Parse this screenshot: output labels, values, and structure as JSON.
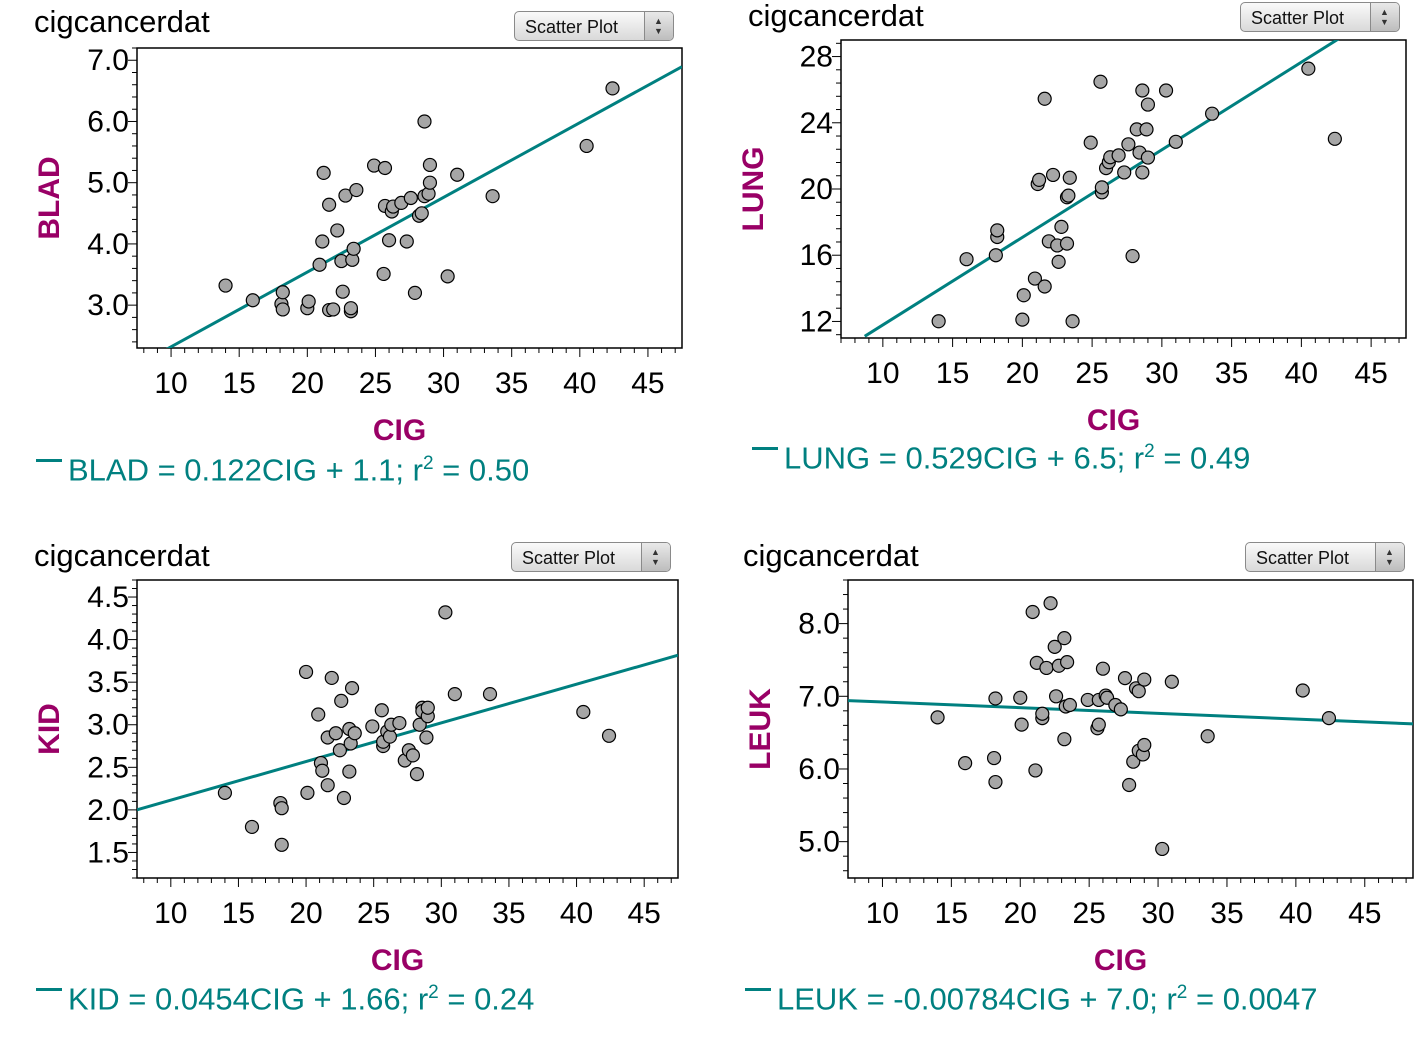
{
  "colors": {
    "regression": "#008080",
    "axis_title": "#990066",
    "point_fill": "#a6a6a6",
    "point_stroke": "#000000"
  },
  "panels": [
    {
      "title": "cigcancerdat",
      "plot_type": "Scatter Plot",
      "equation": "BLAD = 0.122CIG + 1.1; r",
      "r2_exp": "2",
      "r2_value": " = 0.50"
    },
    {
      "title": "cigcancerdat",
      "plot_type": "Scatter Plot",
      "equation": "LUNG = 0.529CIG + 6.5; r",
      "r2_exp": "2",
      "r2_value": " = 0.49"
    },
    {
      "title": "cigcancerdat",
      "plot_type": "Scatter Plot",
      "equation": "KID = 0.0454CIG + 1.66; r",
      "r2_exp": "2",
      "r2_value": " = 0.24"
    },
    {
      "title": "cigcancerdat",
      "plot_type": "Scatter Plot",
      "equation": "LEUK = -0.00784CIG + 7.0; r",
      "r2_exp": "2",
      "r2_value": " = 0.0047"
    }
  ],
  "chart_data": [
    {
      "type": "scatter",
      "title": "cigcancerdat",
      "xlabel": "CIG",
      "ylabel": "BLAD",
      "xlim": [
        7.5,
        47.5
      ],
      "ylim": [
        2.3,
        7.2
      ],
      "xticks": [
        "10",
        "15",
        "20",
        "25",
        "30",
        "35",
        "40",
        "45"
      ],
      "xtick_values": [
        10,
        15,
        20,
        25,
        30,
        35,
        40,
        45
      ],
      "yticks": [
        "3.0",
        "4.0",
        "5.0",
        "6.0",
        "7.0"
      ],
      "ytick_values": [
        3,
        4,
        5,
        6,
        7
      ],
      "regression": {
        "slope": 0.122,
        "intercept": 1.1,
        "r2": 0.5,
        "x_range": [
          9.7,
          47.5
        ]
      },
      "x": [
        14.0,
        16.0,
        18.1,
        18.2,
        18.2,
        20.0,
        20.1,
        20.9,
        21.1,
        21.2,
        21.6,
        21.6,
        21.9,
        22.2,
        22.5,
        22.6,
        22.8,
        23.2,
        23.2,
        23.3,
        23.4,
        23.6,
        24.9,
        25.6,
        25.7,
        25.7,
        26.0,
        26.2,
        26.3,
        26.9,
        27.3,
        27.6,
        27.9,
        28.2,
        28.4,
        28.6,
        28.6,
        28.9,
        29.0,
        29.0,
        30.3,
        31.0,
        33.6,
        40.5,
        42.4
      ],
      "y": [
        3.32,
        3.08,
        3.02,
        3.21,
        2.93,
        2.95,
        3.06,
        3.66,
        4.04,
        5.16,
        2.92,
        4.64,
        2.93,
        4.22,
        3.72,
        3.22,
        4.79,
        2.9,
        2.95,
        3.74,
        3.92,
        4.88,
        5.28,
        3.51,
        4.62,
        5.24,
        4.06,
        4.53,
        4.61,
        4.67,
        4.04,
        4.75,
        3.2,
        4.46,
        4.5,
        6.0,
        4.78,
        4.82,
        5.0,
        5.29,
        3.47,
        5.13,
        4.78,
        5.6,
        6.54
      ]
    },
    {
      "type": "scatter",
      "title": "cigcancerdat",
      "xlabel": "CIG",
      "ylabel": "LUNG",
      "xlim": [
        7.0,
        47.5
      ],
      "ylim": [
        11.0,
        29.0
      ],
      "xticks": [
        "10",
        "15",
        "20",
        "25",
        "30",
        "35",
        "40",
        "45"
      ],
      "xtick_values": [
        10,
        15,
        20,
        25,
        30,
        35,
        40,
        45
      ],
      "yticks": [
        "12",
        "16",
        "20",
        "24",
        "28"
      ],
      "ytick_values": [
        12,
        16,
        20,
        24,
        28
      ],
      "regression": {
        "slope": 0.529,
        "intercept": 6.5,
        "r2": 0.49,
        "x_range": [
          8.7,
          44.5
        ]
      },
      "x": [
        14.0,
        16.0,
        18.1,
        18.2,
        18.2,
        20.0,
        20.1,
        20.9,
        21.1,
        21.2,
        21.6,
        21.6,
        21.9,
        22.2,
        22.5,
        22.6,
        22.8,
        23.2,
        23.2,
        23.3,
        23.4,
        23.6,
        24.9,
        25.6,
        25.7,
        25.7,
        26.0,
        26.2,
        26.3,
        26.9,
        27.3,
        27.6,
        27.9,
        28.2,
        28.4,
        28.6,
        28.6,
        28.9,
        29.0,
        29.0,
        30.3,
        31.0,
        33.6,
        40.5,
        42.4
      ],
      "y": [
        12.01,
        15.76,
        16.0,
        17.1,
        17.5,
        12.11,
        13.58,
        14.59,
        20.3,
        20.55,
        14.11,
        25.45,
        16.84,
        20.85,
        16.59,
        15.6,
        17.71,
        19.5,
        16.7,
        19.6,
        20.68,
        12.01,
        22.8,
        26.48,
        19.8,
        20.1,
        21.26,
        21.62,
        21.92,
        22.03,
        21.0,
        22.7,
        15.95,
        23.6,
        22.2,
        25.95,
        21.0,
        23.6,
        25.1,
        21.9,
        25.95,
        22.85,
        24.55,
        27.27,
        23.03
      ]
    },
    {
      "type": "scatter",
      "title": "cigcancerdat",
      "xlabel": "CIG",
      "ylabel": "KID",
      "xlim": [
        7.5,
        47.5
      ],
      "ylim": [
        1.2,
        4.7
      ],
      "xticks": [
        "10",
        "15",
        "20",
        "25",
        "30",
        "35",
        "40",
        "45"
      ],
      "xtick_values": [
        10,
        15,
        20,
        25,
        30,
        35,
        40,
        45
      ],
      "yticks": [
        "1.5",
        "2.0",
        "2.5",
        "3.0",
        "3.5",
        "4.0",
        "4.5"
      ],
      "ytick_values": [
        1.5,
        2.0,
        2.5,
        3.0,
        3.5,
        4.0,
        4.5
      ],
      "regression": {
        "slope": 0.0454,
        "intercept": 1.66,
        "r2": 0.24,
        "x_range": [
          7.5,
          47.5
        ]
      },
      "x": [
        14.0,
        16.0,
        18.1,
        18.2,
        18.2,
        20.0,
        20.1,
        20.9,
        21.1,
        21.2,
        21.6,
        21.6,
        21.9,
        22.2,
        22.5,
        22.6,
        22.8,
        23.2,
        23.2,
        23.3,
        23.4,
        23.6,
        24.9,
        25.6,
        25.7,
        25.7,
        26.0,
        26.2,
        26.3,
        26.9,
        27.3,
        27.6,
        27.9,
        28.2,
        28.4,
        28.6,
        28.6,
        28.9,
        29.0,
        29.0,
        30.3,
        31.0,
        33.6,
        40.5,
        42.4
      ],
      "y": [
        2.2,
        1.8,
        2.08,
        2.02,
        1.59,
        3.62,
        2.2,
        3.12,
        2.55,
        2.46,
        2.29,
        2.85,
        3.55,
        2.9,
        2.7,
        3.28,
        2.14,
        2.45,
        2.95,
        2.78,
        3.43,
        2.9,
        2.98,
        3.17,
        2.75,
        2.8,
        2.92,
        2.86,
        3.0,
        3.02,
        2.58,
        2.7,
        2.64,
        2.42,
        3.0,
        3.2,
        3.16,
        2.85,
        3.1,
        3.2,
        4.32,
        3.36,
        3.36,
        3.15,
        2.87
      ]
    },
    {
      "type": "scatter",
      "title": "cigcancerdat",
      "xlabel": "CIG",
      "ylabel": "LEUK",
      "xlim": [
        7.5,
        48.5
      ],
      "ylim": [
        4.5,
        8.6
      ],
      "xticks": [
        "10",
        "15",
        "20",
        "25",
        "30",
        "35",
        "40",
        "45"
      ],
      "xtick_values": [
        10,
        15,
        20,
        25,
        30,
        35,
        40,
        45
      ],
      "yticks": [
        "5.0",
        "6.0",
        "7.0",
        "8.0"
      ],
      "ytick_values": [
        5,
        6,
        7,
        8
      ],
      "regression": {
        "slope": -0.00784,
        "intercept": 7.0,
        "r2": 0.0047,
        "x_range": [
          7.5,
          48.5
        ]
      },
      "x": [
        14.0,
        16.0,
        18.1,
        18.2,
        18.2,
        20.0,
        20.1,
        20.9,
        21.1,
        21.2,
        21.6,
        21.6,
        21.9,
        22.2,
        22.5,
        22.6,
        22.8,
        23.2,
        23.2,
        23.3,
        23.4,
        23.6,
        24.9,
        25.6,
        25.7,
        25.7,
        26.0,
        26.2,
        26.3,
        26.9,
        27.3,
        27.6,
        27.9,
        28.2,
        28.4,
        28.6,
        28.6,
        28.9,
        29.0,
        29.0,
        30.3,
        31.0,
        33.6,
        40.5,
        42.4
      ],
      "y": [
        6.71,
        6.08,
        6.15,
        6.97,
        5.82,
        6.98,
        6.61,
        8.16,
        5.98,
        7.46,
        6.7,
        6.76,
        7.39,
        8.28,
        7.68,
        7.0,
        7.42,
        7.8,
        6.41,
        6.86,
        7.47,
        6.88,
        6.95,
        6.56,
        6.61,
        6.95,
        7.38,
        7.01,
        6.98,
        6.88,
        6.82,
        7.25,
        5.78,
        6.1,
        7.11,
        7.07,
        6.25,
        6.2,
        7.23,
        6.33,
        4.9,
        7.2,
        6.45,
        7.08,
        6.7
      ]
    }
  ]
}
